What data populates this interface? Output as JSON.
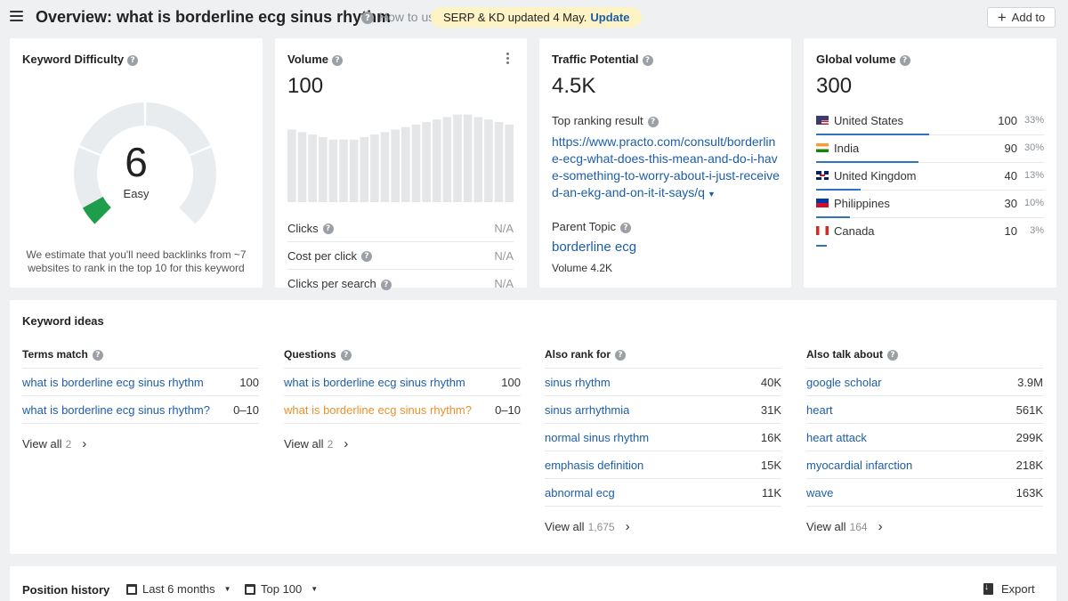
{
  "header": {
    "title": "Overview: what is borderline ecg sinus rhythm",
    "how_to": "How to use",
    "serp_notice": "SERP & KD updated 4 May.",
    "serp_update": "Update",
    "add_to": "Add to"
  },
  "keyword_difficulty": {
    "title": "Keyword Difficulty",
    "value": "6",
    "score": 6,
    "label": "Easy",
    "note": "We estimate that you'll need backlinks from ~7 websites to rank in the top 10 for this keyword",
    "accent": "#1e9e4a"
  },
  "volume": {
    "title": "Volume",
    "value": "100",
    "trend": [
      58,
      56,
      54,
      52,
      50,
      50,
      50,
      52,
      54,
      56,
      58,
      60,
      62,
      64,
      66,
      68,
      70,
      70,
      68,
      66,
      64,
      62
    ],
    "rows": [
      {
        "label": "Clicks",
        "value": "N/A"
      },
      {
        "label": "Cost per click",
        "value": "N/A"
      },
      {
        "label": "Clicks per search",
        "value": "N/A"
      }
    ]
  },
  "traffic_potential": {
    "title": "Traffic Potential",
    "value": "4.5K",
    "top_ranking_label": "Top ranking result",
    "top_ranking_url": "https://www.practo.com/consult/borderline-ecg-what-does-this-mean-and-do-i-have-something-to-worry-about-i-just-received-an-ekg-and-on-it-it-says/q",
    "parent_topic_label": "Parent Topic",
    "parent_topic": "borderline ecg",
    "parent_volume": "Volume 4.2K"
  },
  "global_volume": {
    "title": "Global volume",
    "value": "300",
    "countries": [
      {
        "name": "United States",
        "volume": "100",
        "pct": "33%",
        "share": 0.33,
        "flag": "us-flag-icon"
      },
      {
        "name": "India",
        "volume": "90",
        "pct": "30%",
        "share": 0.3,
        "flag": "in-flag-icon"
      },
      {
        "name": "United Kingdom",
        "volume": "40",
        "pct": "13%",
        "share": 0.13,
        "flag": "uk-flag-icon"
      },
      {
        "name": "Philippines",
        "volume": "30",
        "pct": "10%",
        "share": 0.1,
        "flag": "ph-flag-icon"
      },
      {
        "name": "Canada",
        "volume": "10",
        "pct": "3%",
        "share": 0.03,
        "flag": "ca-flag-icon"
      }
    ]
  },
  "keyword_ideas": {
    "title": "Keyword ideas",
    "view_all_label": "View all",
    "columns": [
      {
        "title": "Terms match",
        "items": [
          {
            "keyword": "what is borderline ecg sinus rhythm",
            "value": "100",
            "highlight": false
          },
          {
            "keyword": "what is borderline ecg sinus rhythm?",
            "value": "0–10",
            "highlight": false
          }
        ],
        "view_all_count": "2"
      },
      {
        "title": "Questions",
        "items": [
          {
            "keyword": "what is borderline ecg sinus rhythm",
            "value": "100",
            "highlight": false
          },
          {
            "keyword": "what is borderline ecg sinus rhythm?",
            "value": "0–10",
            "highlight": true
          }
        ],
        "view_all_count": "2"
      },
      {
        "title": "Also rank for",
        "items": [
          {
            "keyword": "sinus rhythm",
            "value": "40K",
            "highlight": false
          },
          {
            "keyword": "sinus arrhythmia",
            "value": "31K",
            "highlight": false
          },
          {
            "keyword": "normal sinus rhythm",
            "value": "16K",
            "highlight": false
          },
          {
            "keyword": "emphasis definition",
            "value": "15K",
            "highlight": false
          },
          {
            "keyword": "abnormal ecg",
            "value": "11K",
            "highlight": false
          }
        ],
        "view_all_count": "1,675"
      },
      {
        "title": "Also talk about",
        "items": [
          {
            "keyword": "google scholar",
            "value": "3.9M",
            "highlight": false
          },
          {
            "keyword": "heart",
            "value": "561K",
            "highlight": false
          },
          {
            "keyword": "heart attack",
            "value": "299K",
            "highlight": false
          },
          {
            "keyword": "myocardial infarction",
            "value": "218K",
            "highlight": false
          },
          {
            "keyword": "wave",
            "value": "163K",
            "highlight": false
          }
        ],
        "view_all_count": "164"
      }
    ]
  },
  "position_history": {
    "title": "Position history",
    "range": "Last 6 months",
    "top": "Top 100",
    "export": "Export"
  }
}
